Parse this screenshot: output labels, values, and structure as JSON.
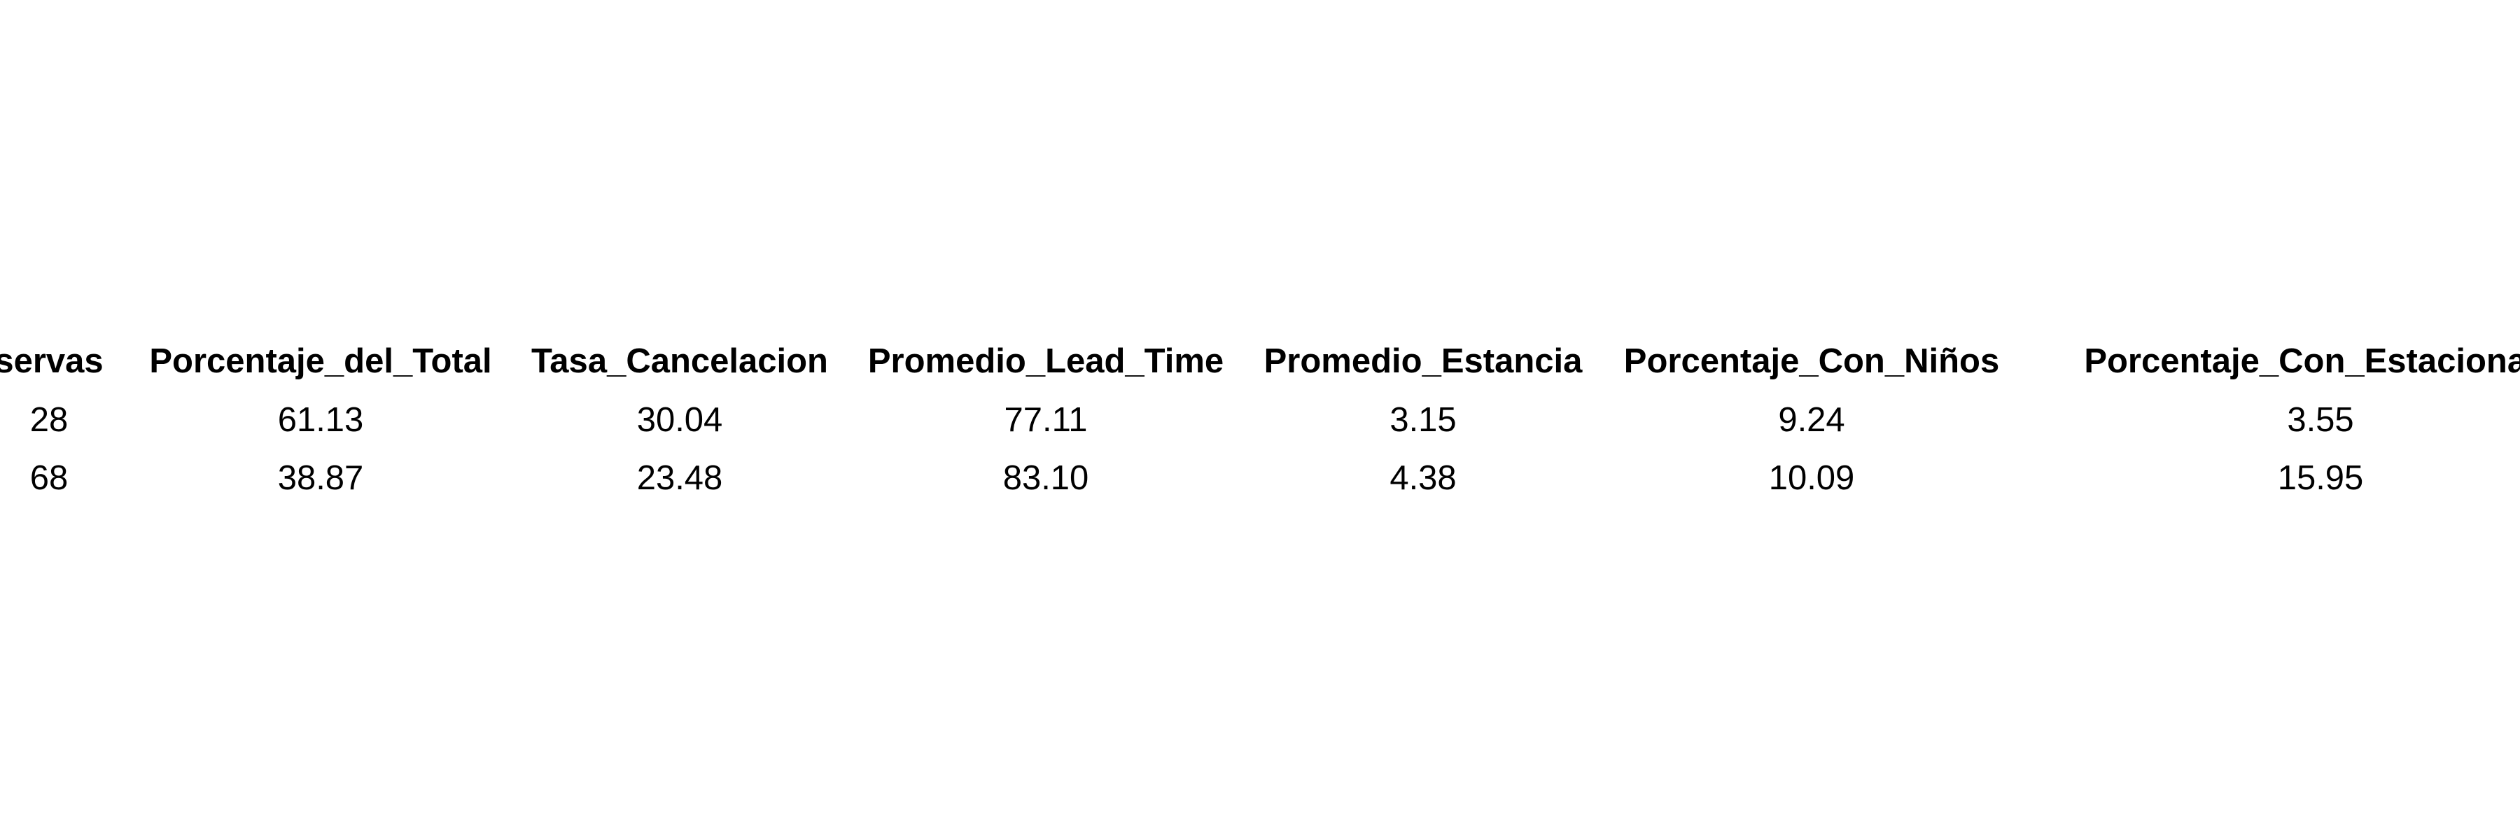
{
  "chart_data": {
    "type": "table",
    "columns": [
      "servas",
      "Porcentaje_del_Total",
      "Tasa_Cancelacion",
      "Promedio_Lead_Time",
      "Promedio_Estancia",
      "Porcentaje_Con_Niños",
      "Porcentaje_Con_Estacionam"
    ],
    "rows": [
      [
        "28",
        "61.13",
        "30.04",
        "77.11",
        "3.15",
        "9.24",
        "3.55"
      ],
      [
        "68",
        "38.87",
        "23.48",
        "83.10",
        "4.38",
        "10.09",
        "15.95"
      ]
    ]
  }
}
